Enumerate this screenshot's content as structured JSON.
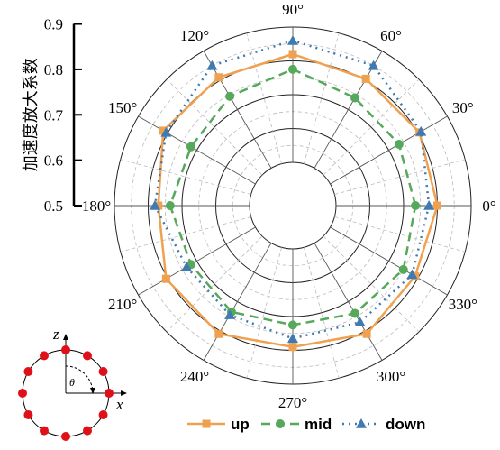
{
  "chart_data": {
    "type": "polar-line",
    "ylabel": "加速度放大系数",
    "r_ticks": [
      0.5,
      0.6,
      0.7,
      0.8,
      0.9
    ],
    "rlim": [
      0.5,
      0.9
    ],
    "angle_labels": [
      "0°",
      "30°",
      "60°",
      "90°",
      "120°",
      "150°",
      "180°",
      "210°",
      "240°",
      "270°",
      "300°",
      "330°"
    ],
    "angles_deg": [
      0,
      30,
      60,
      90,
      120,
      150,
      180,
      210,
      240,
      270,
      300,
      330
    ],
    "grid": true,
    "legend_position": "bottom",
    "series": [
      {
        "name": "up",
        "color": "#f0a150",
        "marker": "square",
        "style": "solid",
        "values": [
          0.8,
          0.805,
          0.805,
          0.82,
          0.81,
          0.815,
          0.77,
          0.805,
          0.81,
          0.79,
          0.81,
          0.79
        ]
      },
      {
        "name": "mid",
        "color": "#56a85a",
        "marker": "circle",
        "style": "dashed",
        "values": [
          0.735,
          0.735,
          0.74,
          0.775,
          0.745,
          0.72,
          0.735,
          0.72,
          0.735,
          0.725,
          0.74,
          0.75
        ]
      },
      {
        "name": "down",
        "color": "#3f7ab0",
        "marker": "triangle",
        "style": "dashdot",
        "values": [
          0.775,
          0.81,
          0.85,
          0.86,
          0.85,
          0.805,
          0.78,
          0.735,
          0.745,
          0.765,
          0.77,
          0.78
        ]
      }
    ]
  },
  "inset": {
    "axis_z": "z",
    "axis_x": "x",
    "theta": "θ",
    "point_color": "#e0101a",
    "point_count": 12
  }
}
